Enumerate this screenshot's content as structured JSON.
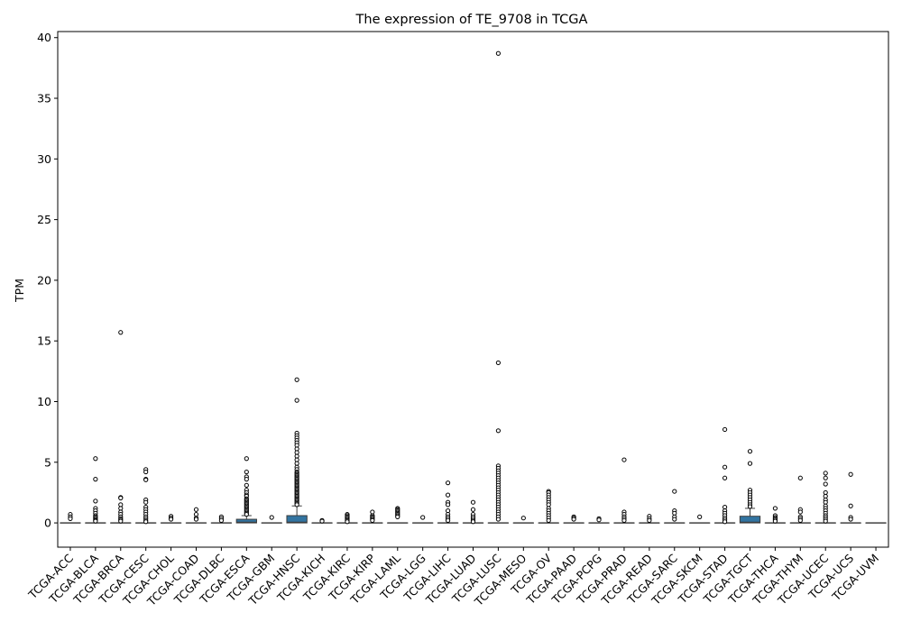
{
  "chart_data": {
    "type": "box",
    "title": "The expression of TE_9708 in TCGA",
    "xlabel": "",
    "ylabel": "TPM",
    "ylim": [
      -2,
      40.5
    ],
    "yticks": [
      0,
      5,
      10,
      15,
      20,
      25,
      30,
      35,
      40
    ],
    "grid": false,
    "legend": "none",
    "box_color": "#3274a1",
    "categories": [
      "TCGA-ACC",
      "TCGA-BLCA",
      "TCGA-BRCA",
      "TCGA-CESC",
      "TCGA-CHOL",
      "TCGA-COAD",
      "TCGA-DLBC",
      "TCGA-ESCA",
      "TCGA-GBM",
      "TCGA-HNSC",
      "TCGA-KICH",
      "TCGA-KIRC",
      "TCGA-KIRP",
      "TCGA-LAML",
      "TCGA-LGG",
      "TCGA-LIHC",
      "TCGA-LUAD",
      "TCGA-LUSC",
      "TCGA-MESO",
      "TCGA-OV",
      "TCGA-PAAD",
      "TCGA-PCPG",
      "TCGA-PRAD",
      "TCGA-READ",
      "TCGA-SARC",
      "TCGA-SKCM",
      "TCGA-STAD",
      "TCGA-TGCT",
      "TCGA-THCA",
      "TCGA-THYM",
      "TCGA-UCEC",
      "TCGA-UCS",
      "TCGA-UVM"
    ],
    "boxes": [
      {
        "q1": 0,
        "median": 0,
        "q3": 0,
        "whisker_low": 0,
        "whisker_high": 0,
        "outliers": [
          0.7,
          0.5,
          0.35
        ]
      },
      {
        "q1": 0,
        "median": 0,
        "q3": 0,
        "whisker_low": 0,
        "whisker_high": 0,
        "outliers": [
          5.3,
          3.6,
          1.8,
          1.2,
          1.0,
          0.8,
          0.6,
          0.5,
          0.4,
          0.3,
          0.2,
          0.15
        ]
      },
      {
        "q1": 0,
        "median": 0,
        "q3": 0,
        "whisker_low": 0,
        "whisker_high": 0,
        "outliers": [
          15.7,
          2.1,
          2.05,
          1.5,
          1.2,
          0.9,
          0.7,
          0.5,
          0.35,
          0.25,
          0.15
        ]
      },
      {
        "q1": 0,
        "median": 0,
        "q3": 0,
        "whisker_low": 0,
        "whisker_high": 0,
        "outliers": [
          4.4,
          4.2,
          3.6,
          3.55,
          1.9,
          1.7,
          1.3,
          1.1,
          0.9,
          0.7,
          0.5,
          0.35,
          0.2,
          0.1
        ]
      },
      {
        "q1": 0,
        "median": 0,
        "q3": 0,
        "whisker_low": 0,
        "whisker_high": 0,
        "outliers": [
          0.55,
          0.4,
          0.3
        ]
      },
      {
        "q1": 0,
        "median": 0,
        "q3": 0,
        "whisker_low": 0,
        "whisker_high": 0,
        "outliers": [
          1.1,
          0.7,
          0.4,
          0.3
        ]
      },
      {
        "q1": 0,
        "median": 0,
        "q3": 0,
        "whisker_low": 0,
        "whisker_high": 0,
        "outliers": [
          0.5,
          0.35,
          0.2
        ]
      },
      {
        "q1": 0,
        "median": 0.05,
        "q3": 0.3,
        "whisker_low": 0,
        "whisker_high": 0.6,
        "outliers": [
          5.3,
          4.2,
          3.8,
          3.6,
          3.1,
          2.7,
          2.5,
          2.3,
          2.2,
          2.0,
          1.9,
          1.8,
          1.7,
          1.6,
          1.5,
          1.4,
          1.3,
          1.2,
          1.1,
          1.0,
          0.9,
          0.8,
          0.7
        ]
      },
      {
        "q1": 0,
        "median": 0,
        "q3": 0,
        "whisker_low": 0,
        "whisker_high": 0,
        "outliers": [
          0.45
        ]
      },
      {
        "q1": 0,
        "median": 0.05,
        "q3": 0.6,
        "whisker_low": 0,
        "whisker_high": 1.4,
        "outliers": [
          11.8,
          10.1,
          7.4,
          7.2,
          7.0,
          6.8,
          6.6,
          6.4,
          6.1,
          5.8,
          5.5,
          5.2,
          4.9,
          4.6,
          4.4,
          4.2,
          4.1,
          4.0,
          3.9,
          3.8,
          3.7,
          3.6,
          3.5,
          3.4,
          3.3,
          3.2,
          3.1,
          3.0,
          2.9,
          2.8,
          2.7,
          2.6,
          2.5,
          2.4,
          2.3,
          2.2,
          2.1,
          2.0,
          1.9,
          1.8,
          1.7,
          1.6,
          1.5
        ]
      },
      {
        "q1": 0,
        "median": 0,
        "q3": 0,
        "whisker_low": 0,
        "whisker_high": 0,
        "outliers": [
          0.2,
          0.15
        ]
      },
      {
        "q1": 0,
        "median": 0,
        "q3": 0,
        "whisker_low": 0,
        "whisker_high": 0,
        "outliers": [
          0.7,
          0.6,
          0.5,
          0.4,
          0.3,
          0.2,
          0.1
        ]
      },
      {
        "q1": 0,
        "median": 0,
        "q3": 0,
        "whisker_low": 0,
        "whisker_high": 0,
        "outliers": [
          0.9,
          0.6,
          0.5,
          0.4,
          0.3,
          0.2
        ]
      },
      {
        "q1": 0,
        "median": 0,
        "q3": 0,
        "whisker_low": 0,
        "whisker_high": 0,
        "outliers": [
          1.2,
          1.1,
          1.0,
          0.9,
          0.8,
          0.7,
          0.6,
          0.5
        ]
      },
      {
        "q1": 0,
        "median": 0,
        "q3": 0,
        "whisker_low": 0,
        "whisker_high": 0,
        "outliers": [
          0.45
        ]
      },
      {
        "q1": 0,
        "median": 0,
        "q3": 0,
        "whisker_low": 0,
        "whisker_high": 0,
        "outliers": [
          3.3,
          2.3,
          1.7,
          1.5,
          1.0,
          0.7,
          0.5,
          0.35,
          0.2
        ]
      },
      {
        "q1": 0,
        "median": 0,
        "q3": 0,
        "whisker_low": 0,
        "whisker_high": 0,
        "outliers": [
          1.7,
          1.1,
          0.7,
          0.5,
          0.35,
          0.2,
          0.1
        ]
      },
      {
        "q1": 0,
        "median": 0,
        "q3": 0,
        "whisker_low": 0,
        "whisker_high": 0,
        "outliers": [
          38.7,
          13.2,
          7.6,
          4.7,
          4.5,
          4.3,
          4.1,
          3.9,
          3.7,
          3.5,
          3.3,
          3.1,
          2.9,
          2.7,
          2.5,
          2.3,
          2.1,
          1.9,
          1.7,
          1.5,
          1.3,
          1.1,
          0.9,
          0.7,
          0.5,
          0.3
        ]
      },
      {
        "q1": 0,
        "median": 0,
        "q3": 0,
        "whisker_low": 0,
        "whisker_high": 0,
        "outliers": [
          0.4
        ]
      },
      {
        "q1": 0,
        "median": 0,
        "q3": 0,
        "whisker_low": 0,
        "whisker_high": 0,
        "outliers": [
          2.6,
          2.5,
          2.3,
          2.1,
          1.9,
          1.7,
          1.5,
          1.2,
          1.0,
          0.8,
          0.6,
          0.4,
          0.2
        ]
      },
      {
        "q1": 0,
        "median": 0,
        "q3": 0,
        "whisker_low": 0,
        "whisker_high": 0,
        "outliers": [
          0.5,
          0.4,
          0.3
        ]
      },
      {
        "q1": 0,
        "median": 0,
        "q3": 0,
        "whisker_low": 0,
        "whisker_high": 0,
        "outliers": [
          0.35,
          0.25
        ]
      },
      {
        "q1": 0,
        "median": 0,
        "q3": 0,
        "whisker_low": 0,
        "whisker_high": 0,
        "outliers": [
          5.2,
          0.9,
          0.7,
          0.5,
          0.35,
          0.2
        ]
      },
      {
        "q1": 0,
        "median": 0,
        "q3": 0,
        "whisker_low": 0,
        "whisker_high": 0,
        "outliers": [
          0.55,
          0.35,
          0.2
        ]
      },
      {
        "q1": 0,
        "median": 0,
        "q3": 0,
        "whisker_low": 0,
        "whisker_high": 0,
        "outliers": [
          2.6,
          1.0,
          0.8,
          0.5,
          0.3
        ]
      },
      {
        "q1": 0,
        "median": 0,
        "q3": 0,
        "whisker_low": 0,
        "whisker_high": 0,
        "outliers": [
          0.5
        ]
      },
      {
        "q1": 0,
        "median": 0,
        "q3": 0,
        "whisker_low": 0,
        "whisker_high": 0,
        "outliers": [
          7.7,
          4.6,
          3.7,
          1.3,
          1.0,
          0.8,
          0.6,
          0.4,
          0.25,
          0.1
        ]
      },
      {
        "q1": 0,
        "median": 0.05,
        "q3": 0.55,
        "whisker_low": 0,
        "whisker_high": 1.2,
        "outliers": [
          5.9,
          4.9,
          2.7,
          2.5,
          2.3,
          2.1,
          1.9,
          1.7,
          1.5,
          1.35
        ]
      },
      {
        "q1": 0,
        "median": 0,
        "q3": 0,
        "whisker_low": 0,
        "whisker_high": 0,
        "outliers": [
          1.2,
          0.6,
          0.45,
          0.35,
          0.25,
          0.15
        ]
      },
      {
        "q1": 0,
        "median": 0,
        "q3": 0,
        "whisker_low": 0,
        "whisker_high": 0,
        "outliers": [
          3.7,
          1.1,
          0.9,
          0.5,
          0.35,
          0.2
        ]
      },
      {
        "q1": 0,
        "median": 0,
        "q3": 0,
        "whisker_low": 0,
        "whisker_high": 0,
        "outliers": [
          4.1,
          3.7,
          3.2,
          2.5,
          2.2,
          1.9,
          1.7,
          1.4,
          1.2,
          1.0,
          0.8,
          0.6,
          0.45,
          0.3,
          0.15
        ]
      },
      {
        "q1": 0,
        "median": 0,
        "q3": 0,
        "whisker_low": 0,
        "whisker_high": 0,
        "outliers": [
          4.0,
          1.4,
          0.45,
          0.3
        ]
      },
      {
        "q1": 0,
        "median": 0,
        "q3": 0,
        "whisker_low": 0,
        "whisker_high": 0,
        "outliers": []
      }
    ]
  }
}
